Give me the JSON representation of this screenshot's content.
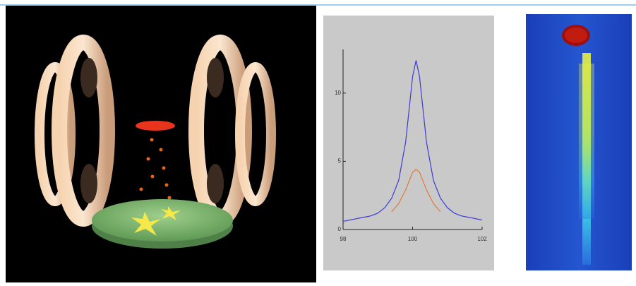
{
  "chart_data": {
    "type": "line",
    "x": [
      98,
      98.2,
      98.4,
      98.6,
      98.8,
      99,
      99.2,
      99.4,
      99.6,
      99.8,
      100,
      100.1,
      100.2,
      100.4,
      100.6,
      100.8,
      101,
      101.2,
      101.4,
      101.6,
      101.8,
      102
    ],
    "series": [
      {
        "color": "#3b3bd6",
        "values": [
          0.6,
          0.7,
          0.8,
          0.9,
          1.0,
          1.2,
          1.6,
          2.3,
          3.6,
          6.4,
          11.2,
          12.4,
          11.2,
          6.4,
          3.6,
          2.3,
          1.6,
          1.2,
          1.0,
          0.9,
          0.8,
          0.7
        ]
      },
      {
        "color": "#e07a3a",
        "values": [
          null,
          null,
          null,
          null,
          null,
          null,
          null,
          1.3,
          1.9,
          2.9,
          4.2,
          4.4,
          4.2,
          2.9,
          1.9,
          1.3,
          null,
          null,
          null,
          null,
          null,
          null
        ]
      }
    ],
    "xlim": [
      98,
      102
    ],
    "ylim": [
      0,
      13.2
    ],
    "xticks": [
      98,
      100,
      102
    ],
    "yticks": [
      0,
      5,
      10
    ]
  }
}
